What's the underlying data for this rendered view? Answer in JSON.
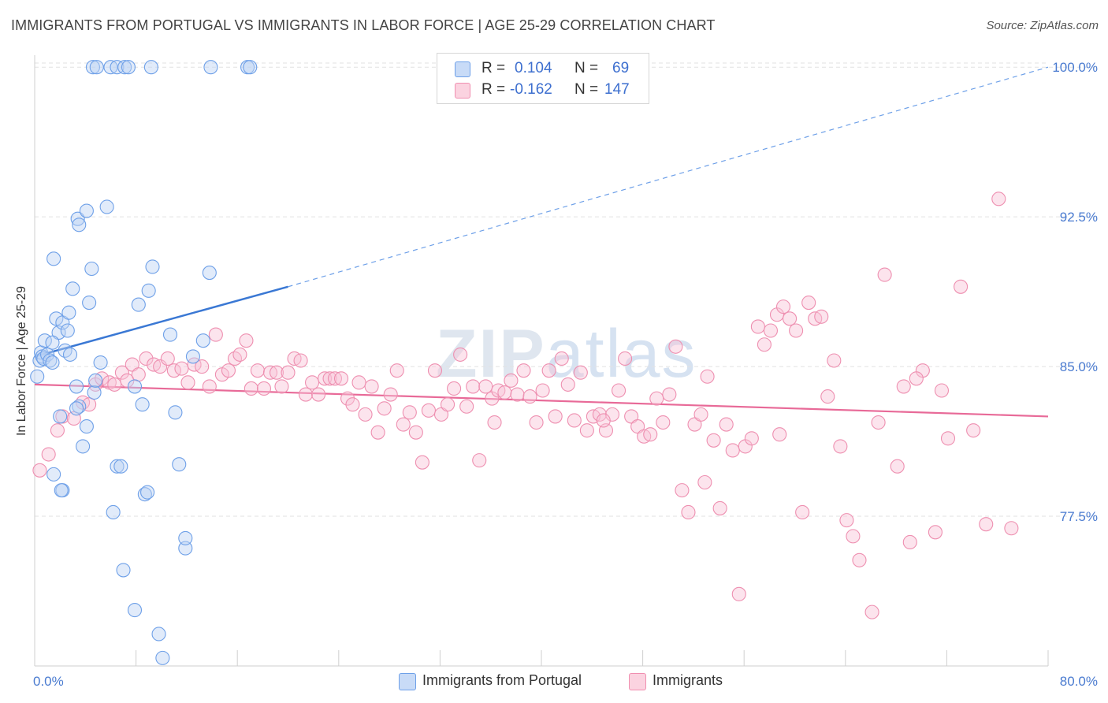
{
  "title": "IMMIGRANTS FROM PORTUGAL VS IMMIGRANTS IN LABOR FORCE | AGE 25-29 CORRELATION CHART",
  "source": "Source: ZipAtlas.com",
  "watermark": {
    "bold": "ZIP",
    "light": "atlas"
  },
  "legend": {
    "rows": [
      {
        "r_label": "R =",
        "r_value": "0.104",
        "n_label": "N =",
        "n_value": "69",
        "color": "#6ea0e8"
      },
      {
        "r_label": "R =",
        "r_value": "-0.162",
        "n_label": "N =",
        "n_value": "147",
        "color": "#f08fb0"
      }
    ]
  },
  "bottom_legend": [
    {
      "label": "Immigrants from Portugal",
      "color": "#6ea0e8"
    },
    {
      "label": "Immigrants",
      "color": "#f08fb0"
    }
  ],
  "chart_data": {
    "type": "scatter",
    "title": "IMMIGRANTS FROM PORTUGAL VS IMMIGRANTS IN LABOR FORCE | AGE 25-29 CORRELATION CHART",
    "xlabel": "",
    "ylabel": "In Labor Force | Age 25-29",
    "xlim": [
      0,
      80
    ],
    "ylim": [
      70,
      100.6
    ],
    "x_tick_labels": [
      "0.0%",
      "80.0%"
    ],
    "y_ticks": [
      77.5,
      85.0,
      92.5,
      100.0
    ],
    "y_tick_labels": [
      "77.5%",
      "85.0%",
      "92.5%",
      "100.0%"
    ],
    "series": [
      {
        "name": "Immigrants from Portugal",
        "color": "#6ea0e8",
        "trend": {
          "x": [
            0,
            20
          ],
          "y": [
            85.5,
            89.0
          ],
          "dashed_to": {
            "x": 80,
            "y": 100.0
          }
        },
        "points": [
          [
            4.6,
            100.0
          ],
          [
            4.9,
            100.0
          ],
          [
            6.0,
            100.0
          ],
          [
            6.5,
            100.0
          ],
          [
            7.1,
            100.0
          ],
          [
            7.4,
            100.0
          ],
          [
            9.2,
            100.0
          ],
          [
            13.9,
            100.0
          ],
          [
            16.8,
            100.0
          ],
          [
            17.0,
            100.0
          ],
          [
            0.2,
            84.5
          ],
          [
            0.4,
            85.3
          ],
          [
            0.5,
            85.7
          ],
          [
            0.6,
            85.5
          ],
          [
            0.7,
            85.4
          ],
          [
            0.8,
            86.3
          ],
          [
            1.0,
            85.6
          ],
          [
            1.2,
            85.3
          ],
          [
            1.4,
            85.2
          ],
          [
            1.5,
            90.4
          ],
          [
            1.7,
            87.4
          ],
          [
            1.9,
            86.7
          ],
          [
            2.0,
            82.5
          ],
          [
            2.2,
            87.2
          ],
          [
            2.4,
            85.8
          ],
          [
            2.6,
            86.8
          ],
          [
            2.7,
            87.7
          ],
          [
            2.8,
            85.6
          ],
          [
            3.0,
            88.9
          ],
          [
            3.3,
            84.0
          ],
          [
            3.5,
            83.0
          ],
          [
            3.3,
            82.9
          ],
          [
            3.4,
            92.4
          ],
          [
            3.5,
            92.1
          ],
          [
            3.8,
            81.0
          ],
          [
            4.1,
            92.8
          ],
          [
            4.3,
            88.2
          ],
          [
            4.5,
            89.9
          ],
          [
            4.7,
            83.7
          ],
          [
            4.8,
            84.3
          ],
          [
            5.2,
            85.2
          ],
          [
            5.7,
            93.0
          ],
          [
            4.1,
            82.0
          ],
          [
            2.2,
            78.8
          ],
          [
            1.5,
            79.6
          ],
          [
            6.5,
            80.0
          ],
          [
            6.8,
            80.0
          ],
          [
            6.2,
            77.7
          ],
          [
            7.0,
            74.8
          ],
          [
            7.9,
            84.0
          ],
          [
            8.2,
            88.1
          ],
          [
            8.5,
            83.1
          ],
          [
            8.7,
            78.6
          ],
          [
            8.9,
            78.7
          ],
          [
            9.0,
            88.8
          ],
          [
            9.3,
            90.0
          ],
          [
            7.9,
            72.8
          ],
          [
            9.8,
            71.6
          ],
          [
            10.1,
            70.4
          ],
          [
            10.7,
            86.6
          ],
          [
            11.1,
            82.7
          ],
          [
            11.4,
            80.1
          ],
          [
            11.9,
            75.9
          ],
          [
            11.9,
            76.4
          ],
          [
            12.5,
            85.5
          ],
          [
            13.3,
            86.3
          ],
          [
            13.8,
            89.7
          ],
          [
            2.1,
            78.8
          ],
          [
            1.4,
            86.2
          ]
        ]
      },
      {
        "name": "Immigrants",
        "color": "#f08fb0",
        "trend": {
          "x": [
            0,
            80
          ],
          "y": [
            84.1,
            82.5
          ]
        },
        "points": [
          [
            0.4,
            79.8
          ],
          [
            1.1,
            80.6
          ],
          [
            1.8,
            81.8
          ],
          [
            2.2,
            82.5
          ],
          [
            3.1,
            82.4
          ],
          [
            3.8,
            83.2
          ],
          [
            4.3,
            83.1
          ],
          [
            4.8,
            84.1
          ],
          [
            5.3,
            84.4
          ],
          [
            5.9,
            84.2
          ],
          [
            6.3,
            84.1
          ],
          [
            6.9,
            84.7
          ],
          [
            7.3,
            84.3
          ],
          [
            7.7,
            85.1
          ],
          [
            8.2,
            84.6
          ],
          [
            8.8,
            85.4
          ],
          [
            9.4,
            85.1
          ],
          [
            9.9,
            85.0
          ],
          [
            10.5,
            85.4
          ],
          [
            11.0,
            84.8
          ],
          [
            11.6,
            84.9
          ],
          [
            12.1,
            84.2
          ],
          [
            12.6,
            85.1
          ],
          [
            13.2,
            85.0
          ],
          [
            13.8,
            84.0
          ],
          [
            14.3,
            86.6
          ],
          [
            14.8,
            84.6
          ],
          [
            15.3,
            84.8
          ],
          [
            15.8,
            85.4
          ],
          [
            16.2,
            85.6
          ],
          [
            16.7,
            86.3
          ],
          [
            17.1,
            83.9
          ],
          [
            17.6,
            84.8
          ],
          [
            18.1,
            83.9
          ],
          [
            18.6,
            84.7
          ],
          [
            19.1,
            84.7
          ],
          [
            19.5,
            84.0
          ],
          [
            20.0,
            84.7
          ],
          [
            20.5,
            85.4
          ],
          [
            21.0,
            85.3
          ],
          [
            21.4,
            83.6
          ],
          [
            21.9,
            84.2
          ],
          [
            22.4,
            83.6
          ],
          [
            22.9,
            84.4
          ],
          [
            23.3,
            84.4
          ],
          [
            23.7,
            84.4
          ],
          [
            24.2,
            84.4
          ],
          [
            24.7,
            83.4
          ],
          [
            25.1,
            83.1
          ],
          [
            25.6,
            84.2
          ],
          [
            26.1,
            82.6
          ],
          [
            26.6,
            84.0
          ],
          [
            27.1,
            81.7
          ],
          [
            27.6,
            82.9
          ],
          [
            28.1,
            83.6
          ],
          [
            28.6,
            84.8
          ],
          [
            29.1,
            82.1
          ],
          [
            29.6,
            82.7
          ],
          [
            30.1,
            81.7
          ],
          [
            30.6,
            80.2
          ],
          [
            31.1,
            82.8
          ],
          [
            31.6,
            84.8
          ],
          [
            32.1,
            82.6
          ],
          [
            32.6,
            83.1
          ],
          [
            33.1,
            83.9
          ],
          [
            33.6,
            85.6
          ],
          [
            34.1,
            83.0
          ],
          [
            34.6,
            84.0
          ],
          [
            35.1,
            80.3
          ],
          [
            35.6,
            84.0
          ],
          [
            36.1,
            83.4
          ],
          [
            36.6,
            83.8
          ],
          [
            37.1,
            83.7
          ],
          [
            37.6,
            84.3
          ],
          [
            38.1,
            83.6
          ],
          [
            38.6,
            84.8
          ],
          [
            39.1,
            83.5
          ],
          [
            39.6,
            82.2
          ],
          [
            40.1,
            83.8
          ],
          [
            40.6,
            84.8
          ],
          [
            41.1,
            82.5
          ],
          [
            41.6,
            85.4
          ],
          [
            42.1,
            84.1
          ],
          [
            42.6,
            82.3
          ],
          [
            43.1,
            84.7
          ],
          [
            43.6,
            81.8
          ],
          [
            44.1,
            82.5
          ],
          [
            44.6,
            82.6
          ],
          [
            45.1,
            81.8
          ],
          [
            45.6,
            82.6
          ],
          [
            46.1,
            83.8
          ],
          [
            46.6,
            85.4
          ],
          [
            47.1,
            82.5
          ],
          [
            47.6,
            82.0
          ],
          [
            48.1,
            81.5
          ],
          [
            48.6,
            81.6
          ],
          [
            49.1,
            83.4
          ],
          [
            49.6,
            82.2
          ],
          [
            50.1,
            83.6
          ],
          [
            50.6,
            86.0
          ],
          [
            51.1,
            78.8
          ],
          [
            51.6,
            77.7
          ],
          [
            52.1,
            82.1
          ],
          [
            52.6,
            82.6
          ],
          [
            53.1,
            84.5
          ],
          [
            53.6,
            81.3
          ],
          [
            54.1,
            77.9
          ],
          [
            54.6,
            82.1
          ],
          [
            55.1,
            80.8
          ],
          [
            55.6,
            73.6
          ],
          [
            56.1,
            81.0
          ],
          [
            56.6,
            81.4
          ],
          [
            57.1,
            87.0
          ],
          [
            57.6,
            86.1
          ],
          [
            58.1,
            86.8
          ],
          [
            58.6,
            87.6
          ],
          [
            59.1,
            88.0
          ],
          [
            59.6,
            87.4
          ],
          [
            60.1,
            86.8
          ],
          [
            60.6,
            77.7
          ],
          [
            61.1,
            88.2
          ],
          [
            61.6,
            87.4
          ],
          [
            62.1,
            87.5
          ],
          [
            62.6,
            83.5
          ],
          [
            63.1,
            85.3
          ],
          [
            63.6,
            81.0
          ],
          [
            64.1,
            77.3
          ],
          [
            65.1,
            75.3
          ],
          [
            66.1,
            72.7
          ],
          [
            67.1,
            89.6
          ],
          [
            68.1,
            80.0
          ],
          [
            68.6,
            84.0
          ],
          [
            69.1,
            76.2
          ],
          [
            70.1,
            84.8
          ],
          [
            71.1,
            76.7
          ],
          [
            72.1,
            81.4
          ],
          [
            73.1,
            89.0
          ],
          [
            74.1,
            81.8
          ],
          [
            75.1,
            77.1
          ],
          [
            76.1,
            93.4
          ],
          [
            77.1,
            76.9
          ],
          [
            71.6,
            83.8
          ],
          [
            69.6,
            84.4
          ],
          [
            66.6,
            82.2
          ],
          [
            64.6,
            76.5
          ],
          [
            58.8,
            81.6
          ],
          [
            52.9,
            79.2
          ],
          [
            44.9,
            82.3
          ],
          [
            36.3,
            82.2
          ]
        ]
      }
    ]
  }
}
